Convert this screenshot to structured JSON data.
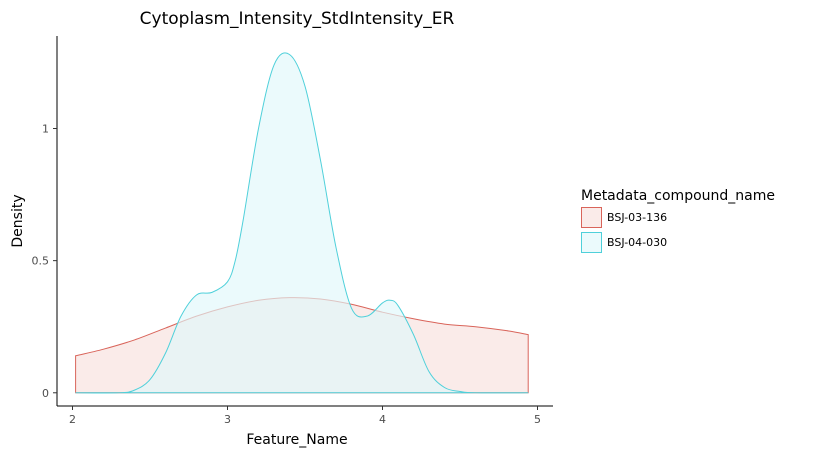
{
  "chart_data": {
    "type": "area",
    "title": "Cytoplasm_Intensity_StdIntensity_ER",
    "xlabel": "Feature_Name",
    "ylabel": "Density",
    "xlim": [
      1.9,
      5.1
    ],
    "ylim": [
      -0.05,
      1.35
    ],
    "x_ticks": [
      2,
      3,
      4,
      5
    ],
    "x_tick_labels": [
      "2",
      "3",
      "4",
      "5"
    ],
    "y_ticks": [
      0,
      0.5,
      1
    ],
    "y_tick_labels": [
      "0",
      "0.5",
      "1"
    ],
    "grid": false,
    "legend": {
      "title": "Metadata_compound_name",
      "position": "right"
    },
    "series": [
      {
        "name": "BSJ-03-136",
        "line_color": "#d9645a",
        "fill_color": "#f8e0dd",
        "x": [
          2.02,
          2.2,
          2.4,
          2.6,
          2.8,
          3.0,
          3.2,
          3.4,
          3.6,
          3.8,
          4.0,
          4.2,
          4.4,
          4.6,
          4.8,
          4.94
        ],
        "y": [
          0.14,
          0.165,
          0.2,
          0.245,
          0.29,
          0.325,
          0.35,
          0.36,
          0.355,
          0.335,
          0.305,
          0.28,
          0.26,
          0.25,
          0.235,
          0.22
        ]
      },
      {
        "name": "BSJ-04-030",
        "line_color": "#4fd0da",
        "fill_color": "#e0f7fa",
        "x": [
          2.02,
          2.3,
          2.4,
          2.5,
          2.6,
          2.7,
          2.8,
          2.9,
          3.0,
          3.05,
          3.1,
          3.2,
          3.3,
          3.4,
          3.5,
          3.6,
          3.7,
          3.8,
          3.9,
          4.0,
          4.05,
          4.1,
          4.2,
          4.3,
          4.4,
          4.5,
          4.6,
          4.94
        ],
        "y": [
          0.0,
          0.0,
          0.01,
          0.05,
          0.15,
          0.29,
          0.37,
          0.38,
          0.42,
          0.5,
          0.65,
          1.0,
          1.24,
          1.28,
          1.16,
          0.88,
          0.55,
          0.32,
          0.29,
          0.34,
          0.35,
          0.33,
          0.22,
          0.08,
          0.02,
          0.005,
          0.0,
          0.0
        ]
      }
    ]
  }
}
